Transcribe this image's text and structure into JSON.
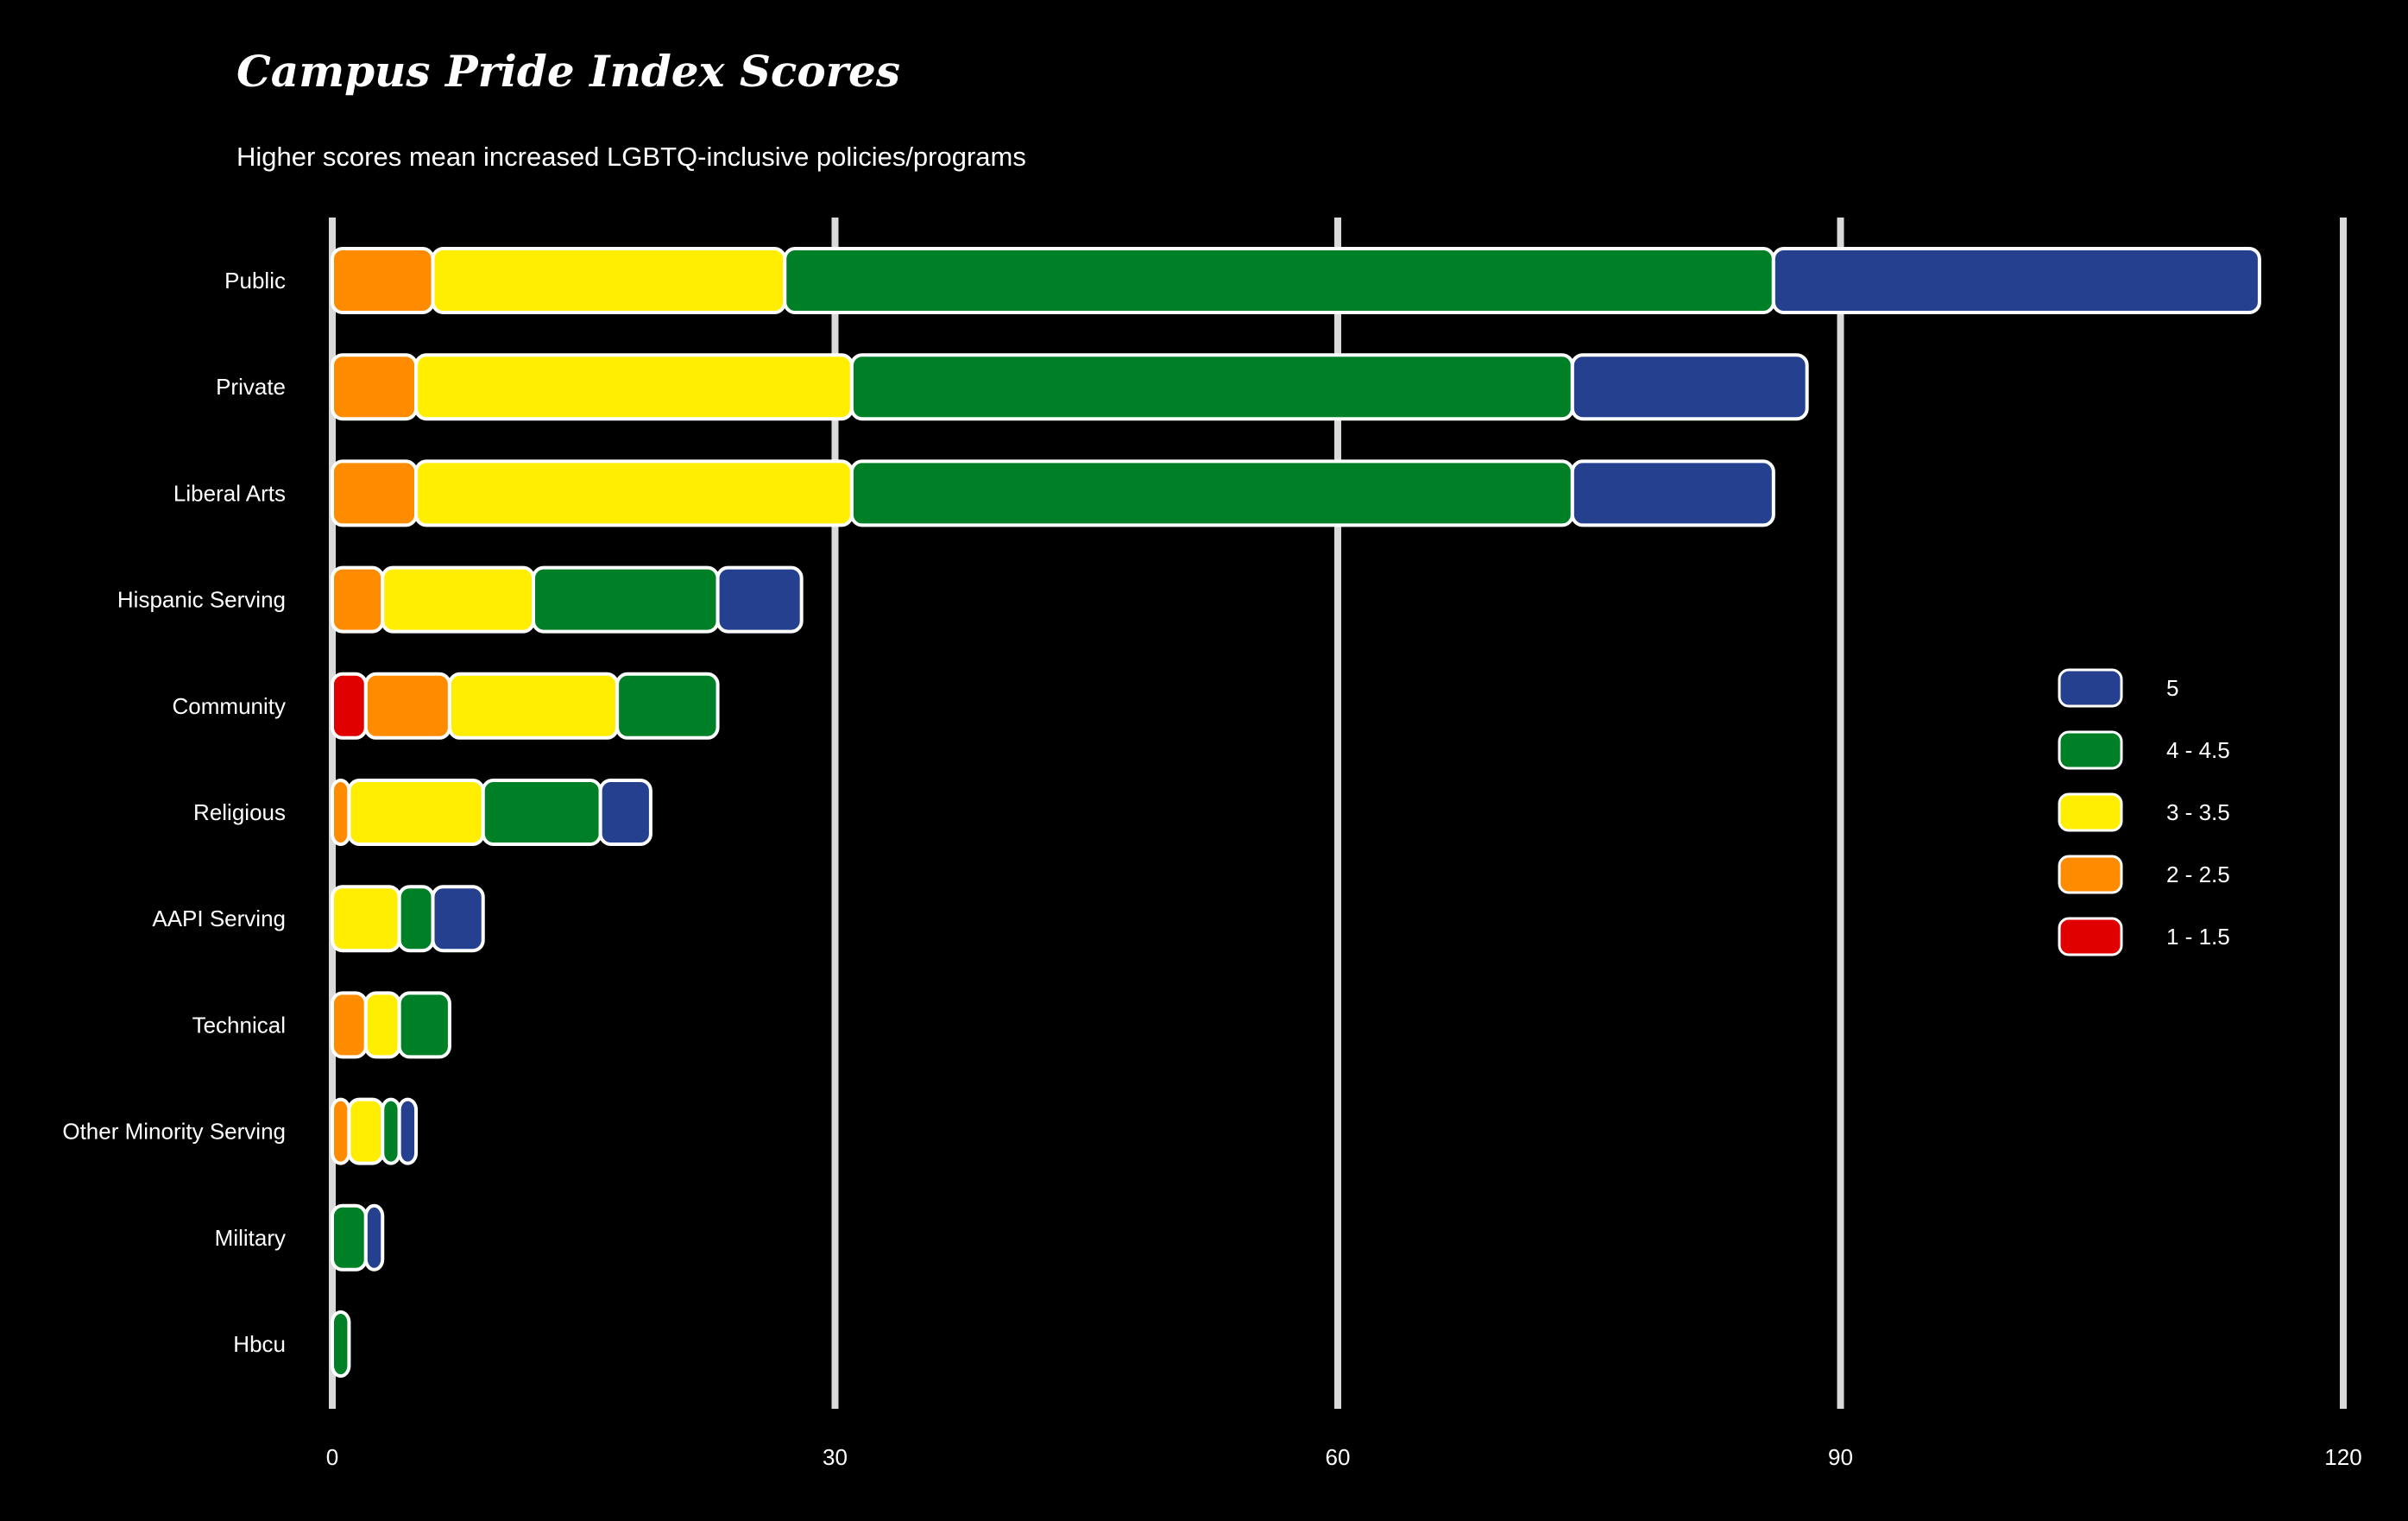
{
  "chart_data": {
    "type": "bar",
    "orientation": "horizontal",
    "stacked": true,
    "title": "Campus Pride Index Scores",
    "subtitle": "Higher scores mean increased LGBTQ-inclusive policies/programs",
    "xlabel": "",
    "ylabel": "",
    "xlim": [
      0,
      120
    ],
    "xticks": [
      0,
      30,
      60,
      90,
      120
    ],
    "grid": "vertical",
    "legend_position": "right",
    "categories": [
      "Public",
      "Private",
      "Liberal Arts",
      "Hispanic Serving",
      "Community",
      "Religious",
      "AAPI Serving",
      "Technical",
      "Other Minority Serving",
      "Military",
      "Hbcu"
    ],
    "series": [
      {
        "name": "1 - 1.5",
        "color": "#e00000",
        "values": [
          0,
          0,
          0,
          0,
          2,
          0,
          0,
          0,
          0,
          0,
          0
        ]
      },
      {
        "name": "2 - 2.5",
        "color": "#ff8c00",
        "values": [
          6,
          5,
          5,
          3,
          5,
          1,
          0,
          2,
          1,
          0,
          0
        ]
      },
      {
        "name": "3 - 3.5",
        "color": "#ffee00",
        "values": [
          21,
          26,
          26,
          9,
          10,
          8,
          4,
          2,
          2,
          0,
          0
        ]
      },
      {
        "name": "4 - 4.5",
        "color": "#008026",
        "values": [
          59,
          43,
          43,
          11,
          6,
          7,
          2,
          3,
          1,
          2,
          1
        ]
      },
      {
        "name": "5",
        "color": "#24408e",
        "values": [
          29,
          14,
          12,
          5,
          0,
          3,
          3,
          0,
          1,
          1,
          0
        ]
      }
    ],
    "legend_order": [
      "5",
      "4 - 4.5",
      "3 - 3.5",
      "2 - 2.5",
      "1 - 1.5"
    ]
  }
}
